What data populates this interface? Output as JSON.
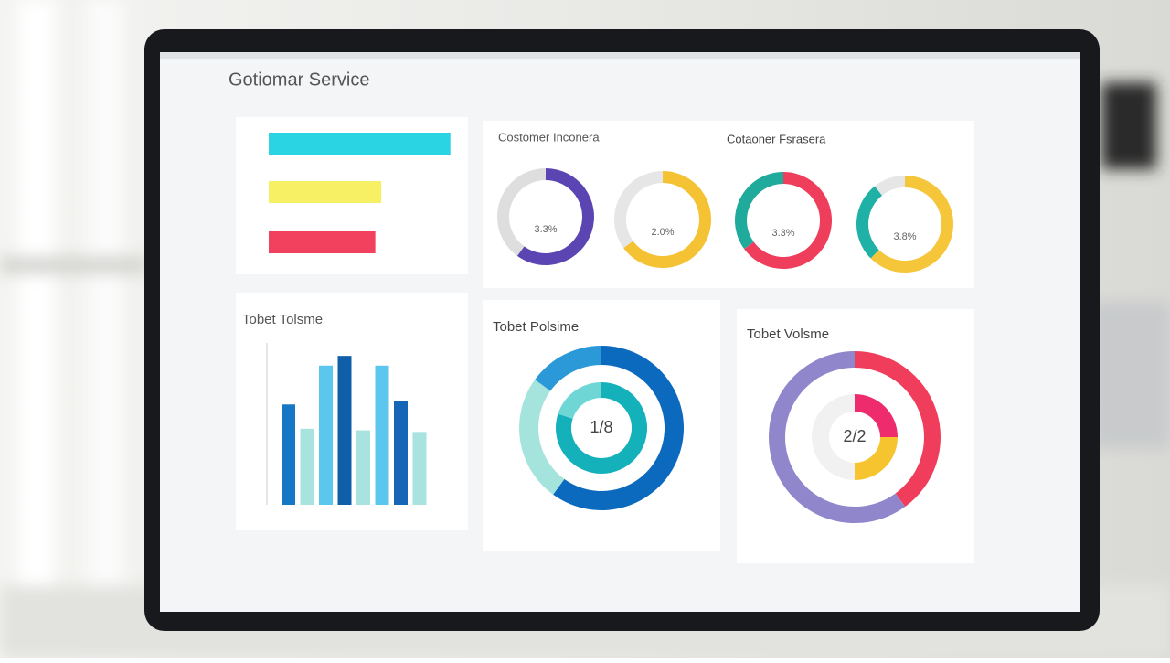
{
  "header": {
    "title": "Gotiomar Service"
  },
  "bar_panel": {
    "xlim": [
      0,
      100
    ],
    "bars": [
      {
        "value": 92,
        "color": "#2ad4e2"
      },
      {
        "value": 57,
        "color": "#f7f065"
      },
      {
        "value": 54,
        "color": "#f2405f"
      }
    ]
  },
  "status_panel": {
    "titles": [
      "Costomer Inconera",
      "Cotaoner Fsrasera"
    ],
    "donuts": [
      {
        "center_label": "3.3%",
        "segments": [
          {
            "value": 60,
            "color": "#5a45b2"
          },
          {
            "value": 40,
            "color": "#dedede"
          }
        ]
      },
      {
        "center_label": "2.0%",
        "segments": [
          {
            "value": 65,
            "color": "#f5c234"
          },
          {
            "value": 35,
            "color": "#e6e6e6"
          }
        ]
      },
      {
        "center_label": "3.3%",
        "segments": [
          {
            "value": 65,
            "color": "#ef3e5c"
          },
          {
            "value": 35,
            "color": "#20aa9c"
          }
        ]
      },
      {
        "center_label": "3.8%",
        "segments": [
          {
            "value": 70,
            "color": "#f6c63a"
          },
          {
            "value": 30,
            "color": "#1fb0a6"
          },
          {
            "value": 12,
            "color": "#e6e6e6"
          }
        ]
      }
    ]
  },
  "volume_panels": [
    {
      "title": "Tobet Tolsme",
      "type": "bar",
      "ylim": [
        0,
        100
      ],
      "values": [
        62,
        47,
        86,
        92,
        46,
        86,
        64,
        45
      ],
      "colors": [
        "#1677c4",
        "#a9e3df",
        "#5bc6ee",
        "#0f5fa8",
        "#a9e3df",
        "#5bc6ee",
        "#1566b6",
        "#a9e3df"
      ]
    },
    {
      "title": "Tobet Polsime",
      "type": "rings",
      "center_label": "1/8",
      "rings": [
        [
          {
            "value": 60,
            "color": "#0b69be"
          },
          {
            "value": 25,
            "color": "#a4e4dc"
          },
          {
            "value": 15,
            "color": "#2b98d8"
          }
        ],
        [
          {
            "value": 80,
            "color": "#15b1bb"
          },
          {
            "value": 20,
            "color": "#6fd6d6"
          }
        ]
      ]
    },
    {
      "title": "Tobet Volsme",
      "type": "rings",
      "center_label": "2/2",
      "rings": [
        [
          {
            "value": 40,
            "color": "#ef3d5b"
          },
          {
            "value": 60,
            "color": "#8f86cc"
          }
        ],
        [
          {
            "value": 25,
            "color": "#ee2b6c"
          },
          {
            "value": 25,
            "color": "#f5c42e"
          },
          {
            "value": 50,
            "color": "#f1f1f1"
          }
        ]
      ]
    }
  ]
}
